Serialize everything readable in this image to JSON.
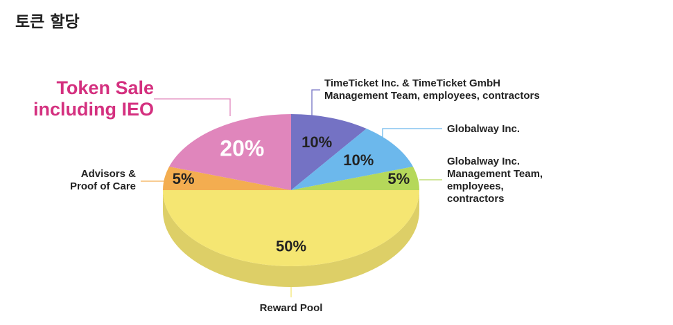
{
  "chart_data": {
    "type": "pie",
    "title": "토큰 할당",
    "categories": [
      "Token Sale including IEO",
      "TimeTicket Inc. & TimeTicket GmbH Management Team, employees, contractors",
      "Globalway Inc.",
      "Globalway Inc. Management Team, employees, contractors",
      "Reward Pool",
      "Advisors & Proof of Care"
    ],
    "values": [
      20,
      10,
      10,
      5,
      50,
      5
    ],
    "value_labels": [
      "20%",
      "10%",
      "10%",
      "5%",
      "50%",
      "5%"
    ],
    "colors": [
      "#e086bc",
      "#7472c4",
      "#6cb8ec",
      "#b5d85a",
      "#f5e672",
      "#f3ad50"
    ]
  }
}
